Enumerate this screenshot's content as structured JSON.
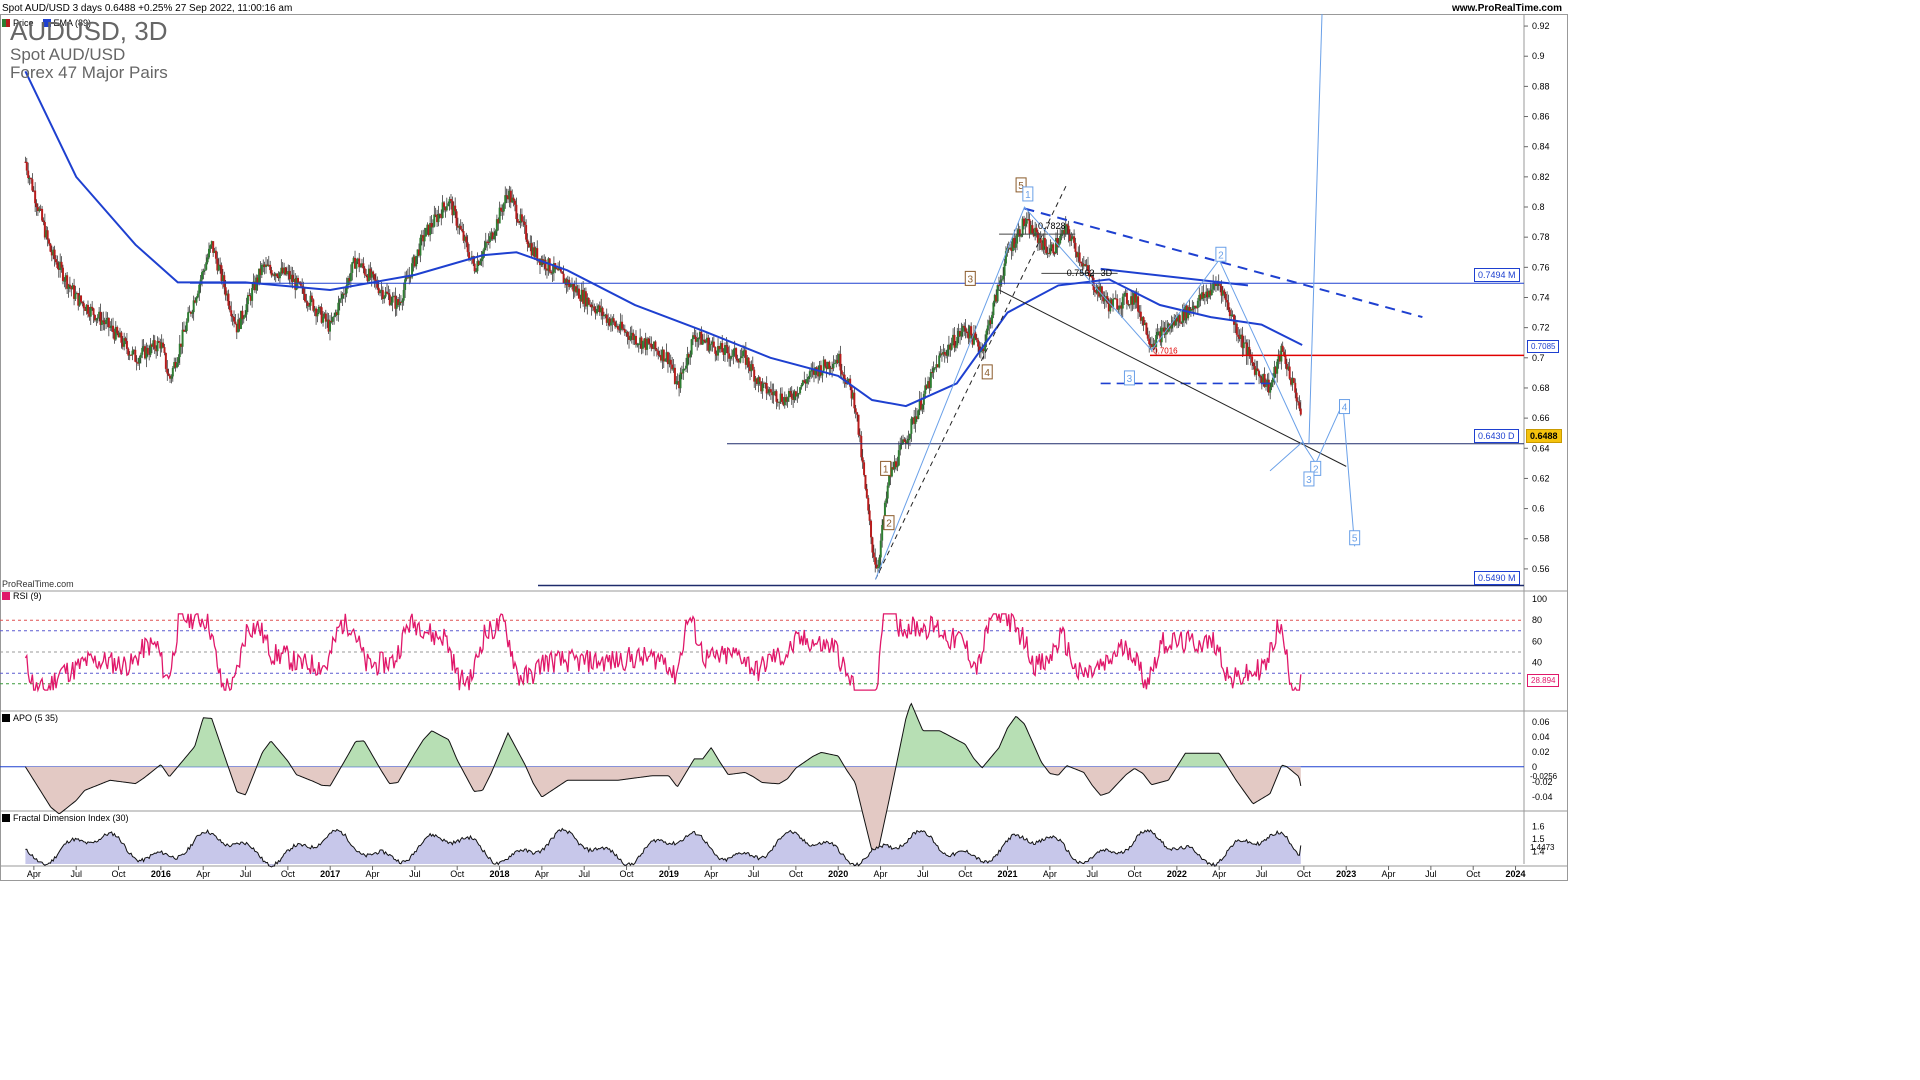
{
  "header": {
    "instrument_line": "Spot AUD/USD 3 days 0.6488 +0.25% 27 Sep 2022, 11:00:16 am",
    "site": "www.ProRealTime.com"
  },
  "title": {
    "main": "AUDUSD, 3D",
    "line2": "Spot AUD/USD",
    "line3": "Forex 47 Major Pairs"
  },
  "watermark": "ProRealTime.com",
  "legend": {
    "price": "Price",
    "ema": "EMA (89)",
    "rsi": "RSI (9)",
    "apo": "APO (5 35)",
    "fdi": "Fractal Dimension Index (30)"
  },
  "colors": {
    "up_candle": "#2e7d32",
    "down_candle": "#b71c1c",
    "ema": "#1e40d0",
    "rsi": "#e0186a",
    "resistance": "#e00000",
    "wave": "#6aa0e8",
    "fdi_fill": "#c7c7ea",
    "apo_pos": "#b7dfb4",
    "apo_neg": "#e3c9c4"
  },
  "chart_data": [
    {
      "type": "candlestick",
      "name": "price_panel",
      "x_axis_labels": [
        "Apr",
        "Jul",
        "Oct",
        "2016",
        "Apr",
        "Jul",
        "Oct",
        "2017",
        "Apr",
        "Jul",
        "Oct",
        "2018",
        "Apr",
        "Jul",
        "Oct",
        "2019",
        "Apr",
        "Jul",
        "Oct",
        "2020",
        "Apr",
        "Jul",
        "Oct",
        "2021",
        "Apr",
        "Jul",
        "Oct",
        "2022",
        "Apr",
        "Jul",
        "Oct",
        "2023",
        "Apr",
        "Jul",
        "Oct",
        "2024"
      ],
      "y_ticks": [
        "0.92",
        "0.9",
        "0.88",
        "0.86",
        "0.84",
        "0.82",
        "0.8",
        "0.78",
        "0.76",
        "0.74",
        "0.72",
        "0.7",
        "0.68",
        "0.66",
        "0.64",
        "0.62",
        "0.6",
        "0.58",
        "0.56"
      ],
      "ylim": [
        0.548,
        0.928
      ],
      "last_price": "0.6488",
      "ema_value": "0.7085",
      "levels": [
        {
          "label": "0.7494 M",
          "value": 0.7494
        },
        {
          "label": "0.6430 D",
          "value": 0.643
        },
        {
          "label": "0.5490 M",
          "value": 0.549
        }
      ],
      "annotations": [
        "0.7828",
        "0.7562",
        "3D",
        "0.7016"
      ],
      "wave_labels_primary": [
        "1",
        "2",
        "3",
        "4",
        "5"
      ],
      "wave_labels_secondary": [
        "1",
        "2",
        "3",
        "4",
        "5",
        "1",
        "2",
        "3",
        "2",
        "4"
      ],
      "path_points": [
        [
          2015.2,
          0.83
        ],
        [
          2015.35,
          0.77
        ],
        [
          2015.5,
          0.74
        ],
        [
          2015.7,
          0.72
        ],
        [
          2015.85,
          0.7
        ],
        [
          2016.0,
          0.71
        ],
        [
          2016.05,
          0.685
        ],
        [
          2016.2,
          0.74
        ],
        [
          2016.3,
          0.775
        ],
        [
          2016.45,
          0.72
        ],
        [
          2016.6,
          0.76
        ],
        [
          2016.75,
          0.755
        ],
        [
          2016.9,
          0.735
        ],
        [
          2017.0,
          0.72
        ],
        [
          2017.15,
          0.765
        ],
        [
          2017.3,
          0.745
        ],
        [
          2017.4,
          0.735
        ],
        [
          2017.55,
          0.78
        ],
        [
          2017.7,
          0.805
        ],
        [
          2017.85,
          0.76
        ],
        [
          2017.95,
          0.78
        ],
        [
          2018.05,
          0.81
        ],
        [
          2018.2,
          0.77
        ],
        [
          2018.35,
          0.755
        ],
        [
          2018.5,
          0.74
        ],
        [
          2018.7,
          0.72
        ],
        [
          2018.85,
          0.71
        ],
        [
          2019.0,
          0.7
        ],
        [
          2019.05,
          0.68
        ],
        [
          2019.15,
          0.715
        ],
        [
          2019.3,
          0.705
        ],
        [
          2019.45,
          0.7
        ],
        [
          2019.55,
          0.68
        ],
        [
          2019.7,
          0.672
        ],
        [
          2019.85,
          0.69
        ],
        [
          2020.0,
          0.7
        ],
        [
          2020.1,
          0.67
        ],
        [
          2020.2,
          0.575
        ],
        [
          2020.23,
          0.56
        ],
        [
          2020.3,
          0.62
        ],
        [
          2020.45,
          0.66
        ],
        [
          2020.6,
          0.7
        ],
        [
          2020.75,
          0.72
        ],
        [
          2020.85,
          0.705
        ],
        [
          2021.0,
          0.77
        ],
        [
          2021.1,
          0.79
        ],
        [
          2021.25,
          0.77
        ],
        [
          2021.35,
          0.785
        ],
        [
          2021.5,
          0.75
        ],
        [
          2021.6,
          0.735
        ],
        [
          2021.75,
          0.74
        ],
        [
          2021.85,
          0.71
        ],
        [
          2021.95,
          0.72
        ],
        [
          2022.05,
          0.73
        ],
        [
          2022.25,
          0.75
        ],
        [
          2022.35,
          0.72
        ],
        [
          2022.45,
          0.695
        ],
        [
          2022.55,
          0.68
        ],
        [
          2022.62,
          0.705
        ],
        [
          2022.65,
          0.695
        ],
        [
          2022.72,
          0.67
        ],
        [
          2022.74,
          0.6488
        ]
      ],
      "ema_points": [
        [
          2015.2,
          0.89
        ],
        [
          2015.5,
          0.82
        ],
        [
          2015.85,
          0.775
        ],
        [
          2016.1,
          0.75
        ],
        [
          2016.5,
          0.75
        ],
        [
          2017.0,
          0.745
        ],
        [
          2017.5,
          0.755
        ],
        [
          2017.9,
          0.768
        ],
        [
          2018.1,
          0.77
        ],
        [
          2018.4,
          0.758
        ],
        [
          2018.8,
          0.735
        ],
        [
          2019.2,
          0.718
        ],
        [
          2019.6,
          0.7
        ],
        [
          2020.0,
          0.688
        ],
        [
          2020.2,
          0.672
        ],
        [
          2020.4,
          0.668
        ],
        [
          2020.7,
          0.683
        ],
        [
          2021.0,
          0.73
        ],
        [
          2021.3,
          0.748
        ],
        [
          2021.6,
          0.752
        ],
        [
          2021.9,
          0.735
        ],
        [
          2022.2,
          0.727
        ],
        [
          2022.5,
          0.722
        ],
        [
          2022.74,
          0.7085
        ]
      ]
    },
    {
      "type": "line",
      "name": "RSI (9)",
      "y_ticks": [
        "100",
        "80",
        "60",
        "40",
        "20"
      ],
      "ylim": [
        0,
        100
      ],
      "levels": [
        80,
        70,
        50,
        30,
        20
      ],
      "last_value": "28.894"
    },
    {
      "type": "area",
      "name": "APO (5 35)",
      "y_ticks": [
        "0.06",
        "0.04",
        "0.02",
        "0",
        "-0.02",
        "-0.04"
      ],
      "ylim": [
        -0.055,
        0.065
      ],
      "last_value": "-0.0256"
    },
    {
      "type": "area",
      "name": "Fractal Dimension Index (30)",
      "y_ticks": [
        "1.6",
        "1.5",
        "1.4"
      ],
      "ylim": [
        1.3,
        1.65
      ],
      "last_value": "1.4473"
    }
  ]
}
